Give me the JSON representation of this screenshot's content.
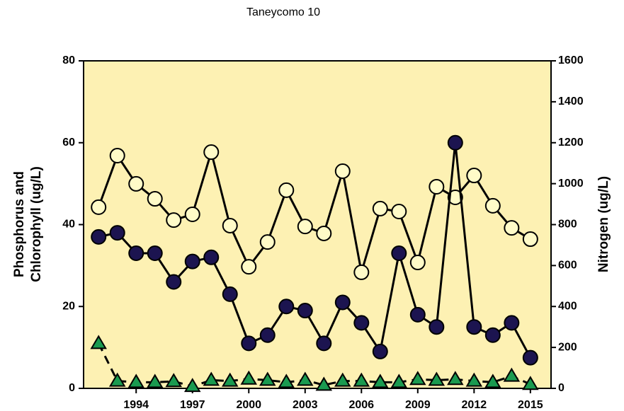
{
  "chart_data": {
    "type": "line",
    "title": "Taneycomo 10",
    "ylabel": [
      "Phosphorus and",
      "Chlorophyll (ug/L)"
    ],
    "y2label": "Nitrogen (ug/L)",
    "x": [
      1992,
      1993,
      1994,
      1995,
      1996,
      1997,
      1998,
      1999,
      2000,
      2001,
      2002,
      2003,
      2004,
      2005,
      2006,
      2007,
      2008,
      2009,
      2010,
      2011,
      2012,
      2013,
      2014,
      2015
    ],
    "xlim": [
      1991.2,
      2016.1
    ],
    "xticks": [
      1994,
      1997,
      2000,
      2003,
      2006,
      2009,
      2012,
      2015
    ],
    "ylim": [
      0,
      80
    ],
    "yticks": [
      0,
      20,
      40,
      60,
      80
    ],
    "y2lim": [
      0,
      1600
    ],
    "y2ticks": [
      0,
      200,
      400,
      600,
      800,
      1000,
      1200,
      1400,
      1600
    ],
    "background": "#fdf1b3",
    "series": [
      {
        "color": "#fffbc8",
        "marker": "circle",
        "linestyle": "solid",
        "axis": "y2",
        "values": [
          885,
          1137,
          999,
          926,
          822,
          850,
          1154,
          795,
          594,
          715,
          968,
          791,
          757,
          1061,
          567,
          878,
          864,
          615,
          985,
          933,
          1040,
          892,
          784,
          729
        ]
      },
      {
        "color": "#1c1450",
        "marker": "circle",
        "linestyle": "solid",
        "values": [
          37,
          38,
          33,
          33,
          26,
          31,
          32,
          23,
          11,
          13,
          20,
          19,
          11,
          21,
          16,
          9,
          33,
          18,
          15,
          60,
          15,
          13,
          16,
          7.5
        ]
      },
      {
        "color": "#1a9a50",
        "marker": "triangle",
        "linestyle": "dashed",
        "values": [
          11,
          1.8,
          1.5,
          1.5,
          1.7,
          0.5,
          2,
          1.8,
          2.3,
          2,
          1.5,
          2,
          0.8,
          1.8,
          1.8,
          1.5,
          1.5,
          2.2,
          2,
          2.2,
          1.8,
          1.5,
          3,
          1
        ]
      }
    ]
  }
}
